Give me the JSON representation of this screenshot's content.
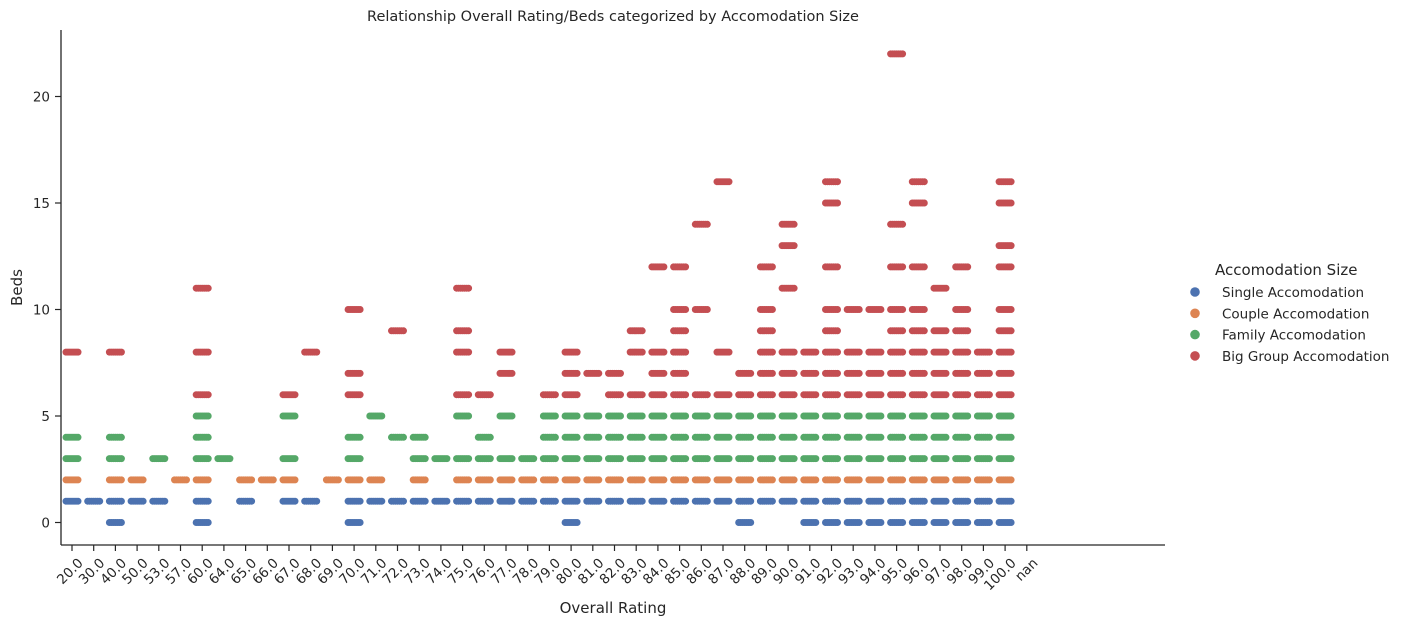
{
  "chart_data": {
    "type": "scatter",
    "title": "Relationship Overall Rating/Beds categorized by Accomodation Size",
    "xlabel": "Overall Rating",
    "ylabel": "Beds",
    "categories": [
      "20.0",
      "30.0",
      "40.0",
      "50.0",
      "53.0",
      "57.0",
      "60.0",
      "64.0",
      "65.0",
      "66.0",
      "67.0",
      "68.0",
      "69.0",
      "70.0",
      "71.0",
      "72.0",
      "73.0",
      "74.0",
      "75.0",
      "76.0",
      "77.0",
      "78.0",
      "79.0",
      "80.0",
      "81.0",
      "82.0",
      "83.0",
      "84.0",
      "85.0",
      "86.0",
      "87.0",
      "88.0",
      "89.0",
      "90.0",
      "91.0",
      "92.0",
      "93.0",
      "94.0",
      "95.0",
      "96.0",
      "97.0",
      "98.0",
      "99.0",
      "100.0",
      "nan"
    ],
    "ylim": [
      -1,
      23
    ],
    "yticks": [
      0,
      5,
      10,
      15,
      20
    ],
    "grid": false,
    "legend": {
      "title": "Accomodation Size",
      "placement": "right"
    },
    "series": [
      {
        "name": "Single Accomodation",
        "color": "#4c72b0",
        "points": {
          "20.0": [
            1
          ],
          "30.0": [
            1
          ],
          "40.0": [
            0,
            1
          ],
          "50.0": [
            1
          ],
          "53.0": [
            1
          ],
          "60.0": [
            0,
            1
          ],
          "65.0": [
            1
          ],
          "67.0": [
            1
          ],
          "68.0": [
            1
          ],
          "70.0": [
            0,
            1
          ],
          "71.0": [
            1
          ],
          "72.0": [
            1
          ],
          "73.0": [
            1
          ],
          "74.0": [
            1
          ],
          "75.0": [
            1
          ],
          "76.0": [
            1
          ],
          "77.0": [
            1
          ],
          "78.0": [
            1
          ],
          "79.0": [
            1
          ],
          "80.0": [
            0,
            1
          ],
          "81.0": [
            1
          ],
          "82.0": [
            1
          ],
          "83.0": [
            1
          ],
          "84.0": [
            1
          ],
          "85.0": [
            1
          ],
          "86.0": [
            1
          ],
          "87.0": [
            1
          ],
          "88.0": [
            0,
            1
          ],
          "89.0": [
            1
          ],
          "90.0": [
            1
          ],
          "91.0": [
            0,
            1
          ],
          "92.0": [
            0,
            1
          ],
          "93.0": [
            0,
            1
          ],
          "94.0": [
            0,
            1
          ],
          "95.0": [
            0,
            1
          ],
          "96.0": [
            0,
            1
          ],
          "97.0": [
            0,
            1
          ],
          "98.0": [
            0,
            1
          ],
          "99.0": [
            0,
            1
          ],
          "100.0": [
            0,
            1
          ]
        }
      },
      {
        "name": "Couple Accomodation",
        "color": "#dd8452",
        "points": {
          "20.0": [
            2
          ],
          "40.0": [
            2
          ],
          "50.0": [
            2
          ],
          "57.0": [
            2
          ],
          "60.0": [
            2
          ],
          "65.0": [
            2
          ],
          "66.0": [
            2
          ],
          "67.0": [
            2
          ],
          "69.0": [
            2
          ],
          "70.0": [
            2
          ],
          "71.0": [
            2
          ],
          "73.0": [
            2
          ],
          "75.0": [
            2
          ],
          "76.0": [
            2
          ],
          "77.0": [
            2
          ],
          "78.0": [
            2
          ],
          "79.0": [
            2
          ],
          "80.0": [
            2
          ],
          "81.0": [
            2
          ],
          "82.0": [
            2
          ],
          "83.0": [
            2
          ],
          "84.0": [
            2
          ],
          "85.0": [
            2
          ],
          "86.0": [
            2
          ],
          "87.0": [
            2
          ],
          "88.0": [
            2
          ],
          "89.0": [
            2
          ],
          "90.0": [
            2
          ],
          "91.0": [
            2
          ],
          "92.0": [
            2
          ],
          "93.0": [
            2
          ],
          "94.0": [
            2
          ],
          "95.0": [
            2
          ],
          "96.0": [
            2
          ],
          "97.0": [
            2
          ],
          "98.0": [
            2
          ],
          "99.0": [
            2
          ],
          "100.0": [
            2
          ]
        }
      },
      {
        "name": "Family Accomodation",
        "color": "#55a868",
        "points": {
          "20.0": [
            3,
            4
          ],
          "40.0": [
            3,
            4
          ],
          "53.0": [
            3
          ],
          "60.0": [
            3,
            4,
            5
          ],
          "64.0": [
            3
          ],
          "67.0": [
            3,
            5
          ],
          "70.0": [
            3,
            4
          ],
          "71.0": [
            5
          ],
          "72.0": [
            4
          ],
          "73.0": [
            3,
            4
          ],
          "74.0": [
            3
          ],
          "75.0": [
            3,
            5
          ],
          "76.0": [
            3,
            4
          ],
          "77.0": [
            3,
            5
          ],
          "78.0": [
            3
          ],
          "79.0": [
            3,
            4,
            5
          ],
          "80.0": [
            3,
            4,
            5
          ],
          "81.0": [
            3,
            4,
            5
          ],
          "82.0": [
            3,
            4,
            5
          ],
          "83.0": [
            3,
            4,
            5
          ],
          "84.0": [
            3,
            4,
            5
          ],
          "85.0": [
            3,
            4,
            5
          ],
          "86.0": [
            3,
            4,
            5
          ],
          "87.0": [
            3,
            4,
            5
          ],
          "88.0": [
            3,
            4,
            5
          ],
          "89.0": [
            3,
            4,
            5
          ],
          "90.0": [
            3,
            4,
            5
          ],
          "91.0": [
            3,
            4,
            5
          ],
          "92.0": [
            3,
            4,
            5
          ],
          "93.0": [
            3,
            4,
            5
          ],
          "94.0": [
            3,
            4,
            5
          ],
          "95.0": [
            3,
            4,
            5
          ],
          "96.0": [
            3,
            4,
            5
          ],
          "97.0": [
            3,
            4,
            5
          ],
          "98.0": [
            3,
            4,
            5
          ],
          "99.0": [
            3,
            4,
            5
          ],
          "100.0": [
            3,
            4,
            5
          ]
        }
      },
      {
        "name": "Big Group Accomodation",
        "color": "#c44e52",
        "points": {
          "20.0": [
            8
          ],
          "40.0": [
            8
          ],
          "60.0": [
            6,
            8,
            11
          ],
          "67.0": [
            6
          ],
          "68.0": [
            8
          ],
          "70.0": [
            6,
            7,
            10
          ],
          "72.0": [
            9
          ],
          "75.0": [
            6,
            8,
            9,
            11
          ],
          "76.0": [
            6
          ],
          "77.0": [
            7,
            8
          ],
          "79.0": [
            6
          ],
          "80.0": [
            6,
            7,
            8
          ],
          "81.0": [
            7
          ],
          "82.0": [
            6,
            7
          ],
          "83.0": [
            6,
            8,
            9
          ],
          "84.0": [
            6,
            7,
            8,
            12
          ],
          "85.0": [
            6,
            7,
            8,
            9,
            10,
            12
          ],
          "86.0": [
            6,
            10,
            14
          ],
          "87.0": [
            6,
            8,
            16
          ],
          "88.0": [
            6,
            7
          ],
          "89.0": [
            6,
            7,
            8,
            9,
            10,
            12
          ],
          "90.0": [
            6,
            7,
            8,
            11,
            13,
            14
          ],
          "91.0": [
            6,
            7,
            8
          ],
          "92.0": [
            6,
            7,
            8,
            9,
            10,
            12,
            15,
            16
          ],
          "93.0": [
            6,
            7,
            8,
            10
          ],
          "94.0": [
            6,
            7,
            8,
            10
          ],
          "95.0": [
            6,
            7,
            8,
            9,
            10,
            12,
            14,
            22
          ],
          "96.0": [
            6,
            7,
            8,
            9,
            10,
            12,
            15,
            16
          ],
          "97.0": [
            6,
            7,
            8,
            9,
            11
          ],
          "98.0": [
            6,
            7,
            8,
            9,
            10,
            12
          ],
          "99.0": [
            6,
            7,
            8
          ],
          "100.0": [
            6,
            7,
            8,
            9,
            10,
            12,
            13,
            15,
            16
          ]
        }
      }
    ]
  }
}
